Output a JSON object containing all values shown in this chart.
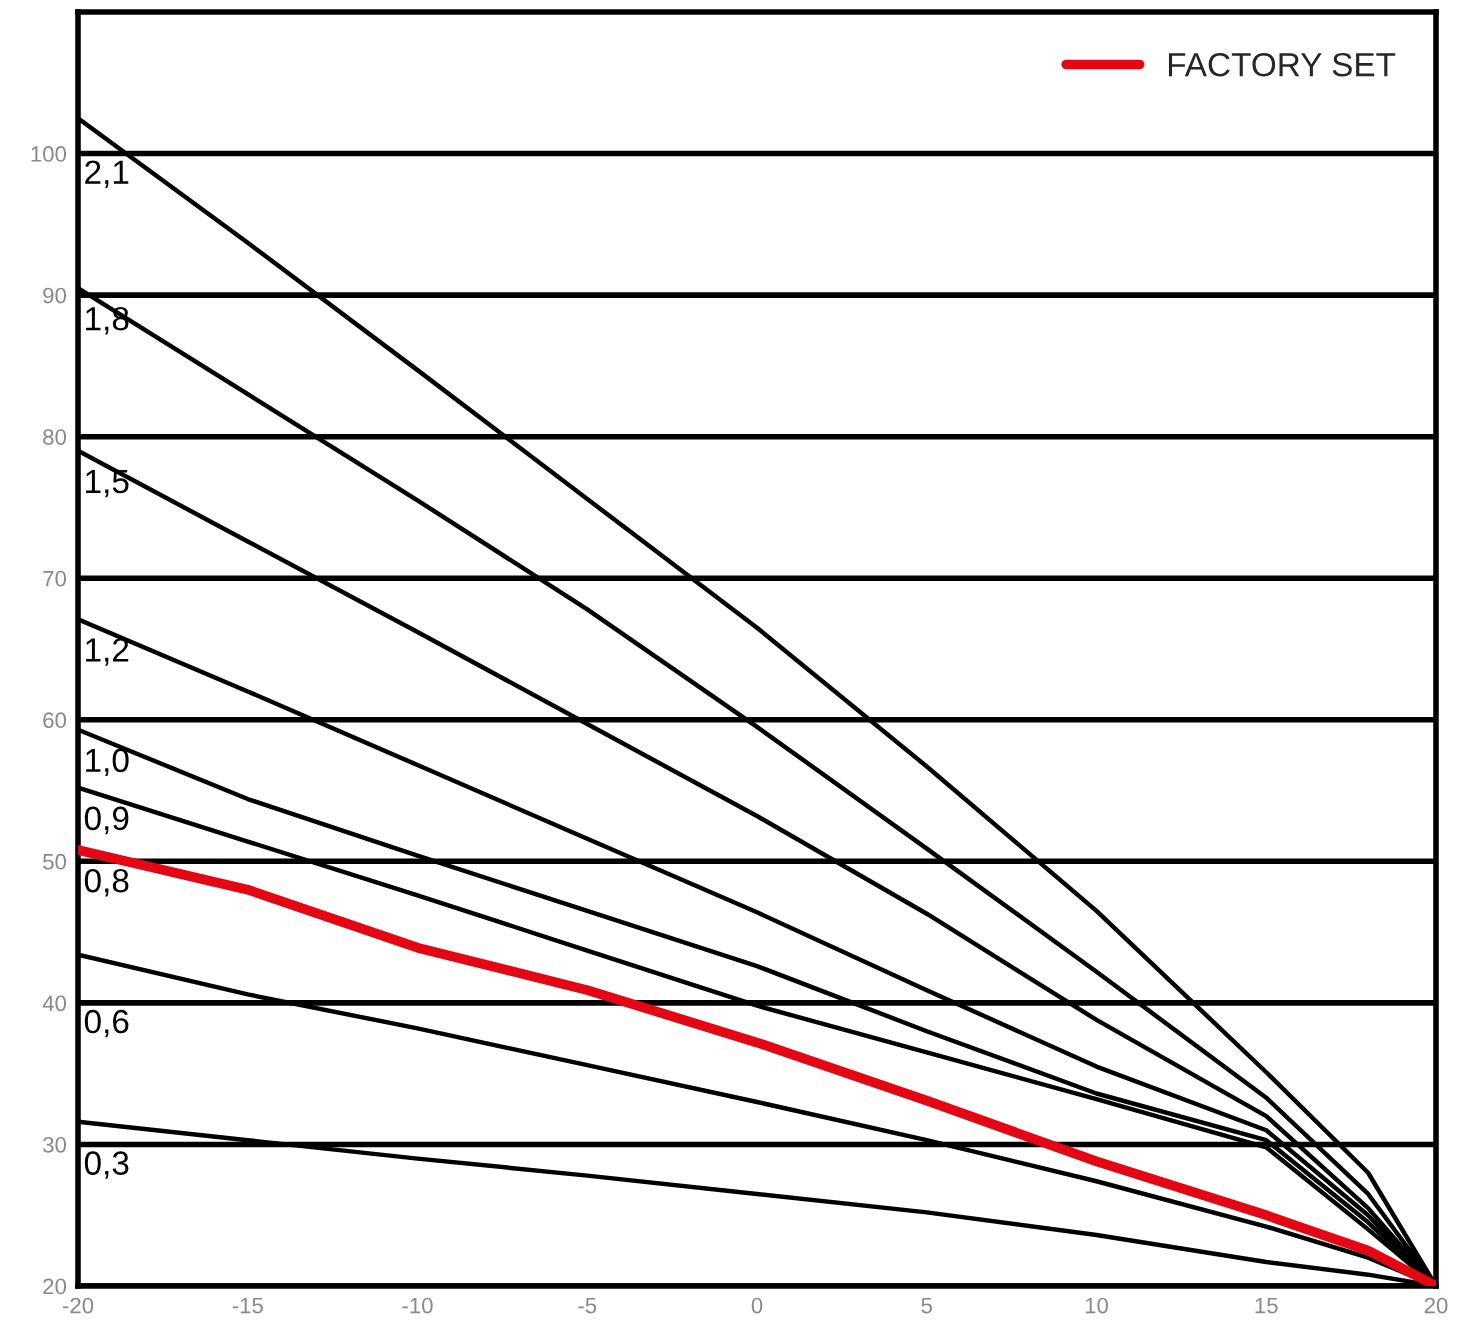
{
  "chart_data": {
    "type": "line",
    "x": [
      -20,
      -15,
      -10,
      -5,
      0,
      5,
      10,
      15,
      18,
      20
    ],
    "series": [
      {
        "color": "#000000",
        "values": [
          102.5,
          93.7,
          84.7,
          75.6,
          66.5,
          56.7,
          46.5,
          35.1,
          28,
          20
        ]
      },
      {
        "color": "#000000",
        "values": [
          90.5,
          83,
          75.5,
          67.8,
          59.5,
          50.9,
          42.2,
          33.3,
          26.5,
          20
        ]
      },
      {
        "color": "#000000",
        "values": [
          79,
          72.6,
          66.2,
          59.7,
          53.2,
          46.3,
          38.8,
          32,
          25.5,
          20
        ]
      },
      {
        "color": "#000000",
        "values": [
          67.1,
          62,
          56.8,
          51.6,
          46.4,
          40.9,
          35.5,
          31,
          25,
          20
        ]
      },
      {
        "color": "#000000",
        "values": [
          59.3,
          54.4,
          50.4,
          46.5,
          42.6,
          38,
          33.6,
          30.3,
          24.5,
          20
        ]
      },
      {
        "color": "#000000",
        "values": [
          55.2,
          51.4,
          47.6,
          43.7,
          39.8,
          36.5,
          33.2,
          29.8,
          24,
          20
        ]
      },
      {
        "name": "FACTORY SET",
        "color": "#e30613",
        "values": [
          50.8,
          48,
          43.9,
          40.9,
          37.2,
          33.1,
          28.8,
          25,
          22.5,
          20
        ]
      },
      {
        "color": "#000000",
        "values": [
          43.4,
          40.6,
          38.2,
          35.6,
          33,
          30.3,
          27.4,
          24.2,
          22,
          20
        ]
      },
      {
        "color": "#000000",
        "values": [
          31.6,
          30.3,
          29,
          27.8,
          26.5,
          25.2,
          23.6,
          21.7,
          20.8,
          20
        ]
      }
    ],
    "annotations": [
      "2,1",
      "1,8",
      "1,5",
      "1,2",
      "1,0",
      "0,9",
      "0,8",
      "0,6",
      "0,3"
    ],
    "xlim": [
      -20,
      20
    ],
    "xticks": [
      -20,
      -15,
      -10,
      -5,
      0,
      5,
      10,
      15,
      20
    ],
    "ylim": [
      20,
      110
    ],
    "yticks": [
      20,
      30,
      40,
      50,
      60,
      70,
      80,
      90,
      100
    ],
    "grid": "y",
    "legend": "top right"
  }
}
